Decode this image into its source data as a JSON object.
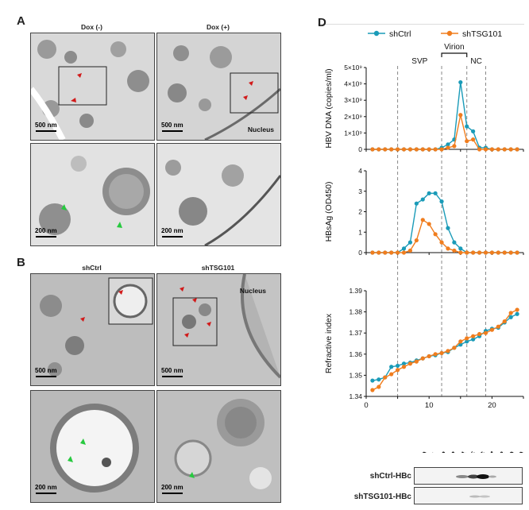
{
  "panels": {
    "A": {
      "letter": "A",
      "col_left": "Dox (-)",
      "col_right": "Dox (+)",
      "scale_top": "500 nm",
      "scale_bottom": "200 nm",
      "nucleus": "Nucleus"
    },
    "B": {
      "letter": "B",
      "col_left": "shCtrl",
      "col_right": "shTSG101",
      "scale_top": "500 nm",
      "scale_bottom": "200 nm",
      "nucleus": "Nucleus"
    },
    "D": {
      "letter": "D",
      "regions": [
        "SVP",
        "Virion",
        "NC"
      ],
      "blots": [
        "shCtrl-HBc",
        "shTSG101-HBc"
      ],
      "fraction_labels": [
        "F10",
        "F11",
        "F12",
        "F13",
        "F14",
        "F15",
        "F16",
        "F17",
        "F18",
        "F19",
        "F20"
      ]
    }
  },
  "colors": {
    "shCtrl": "#1a9bb8",
    "shTSG101": "#f07d1e",
    "arrow_red": "#d11a1a",
    "arrow_green": "#27c93f"
  },
  "chart_data": [
    {
      "type": "line",
      "ylabel": "HBV DNA (copies/ml)",
      "ylim": [
        0,
        5000000000.0
      ],
      "yticks": [
        "0",
        "1×10⁹",
        "2×10⁹",
        "3×10⁹",
        "4×10⁹",
        "5×10⁹"
      ],
      "x": [
        1,
        2,
        3,
        4,
        5,
        6,
        7,
        8,
        9,
        10,
        11,
        12,
        13,
        14,
        15,
        16,
        17,
        18,
        19,
        20,
        21,
        22,
        23,
        24
      ],
      "series": [
        {
          "name": "shCtrl",
          "values": [
            0,
            0,
            0,
            0,
            0,
            0,
            0,
            0,
            0,
            0,
            0,
            100000000.0,
            300000000.0,
            600000000.0,
            4100000000.0,
            1400000000.0,
            1100000000.0,
            100000000.0,
            100000000.0,
            0,
            0,
            0,
            0,
            0
          ]
        },
        {
          "name": "shTSG101",
          "values": [
            0,
            0,
            0,
            0,
            0,
            0,
            0,
            0,
            0,
            0,
            0,
            0,
            100000000.0,
            200000000.0,
            2100000000.0,
            500000000.0,
            600000000.0,
            0,
            0,
            0,
            0,
            0,
            0,
            0
          ]
        }
      ]
    },
    {
      "type": "line",
      "ylabel": "HBsAg (OD450)",
      "ylim": [
        0,
        4
      ],
      "yticks": [
        "0",
        "1",
        "2",
        "3",
        "4"
      ],
      "x": [
        1,
        2,
        3,
        4,
        5,
        6,
        7,
        8,
        9,
        10,
        11,
        12,
        13,
        14,
        15,
        16,
        17,
        18,
        19,
        20,
        21,
        22,
        23,
        24
      ],
      "series": [
        {
          "name": "shCtrl",
          "values": [
            0,
            0,
            0,
            0,
            0,
            0.2,
            0.5,
            2.4,
            2.6,
            2.9,
            2.9,
            2.5,
            1.2,
            0.5,
            0.2,
            0,
            0,
            0,
            0,
            0,
            0,
            0,
            0,
            0
          ]
        },
        {
          "name": "shTSG101",
          "values": [
            0,
            0,
            0,
            0,
            0,
            0,
            0.1,
            0.6,
            1.6,
            1.4,
            0.9,
            0.5,
            0.2,
            0.1,
            0,
            0,
            0,
            0,
            0,
            0,
            0,
            0,
            0,
            0
          ]
        }
      ]
    },
    {
      "type": "line",
      "ylabel": "Refractive index",
      "xlabel": "",
      "ylim": [
        1.34,
        1.39
      ],
      "yticks": [
        "1.34",
        "1.35",
        "1.36",
        "1.37",
        "1.38",
        "1.39"
      ],
      "xticks": [
        "0",
        "10",
        "20"
      ],
      "xlim": [
        0,
        25
      ],
      "x": [
        1,
        2,
        3,
        4,
        5,
        6,
        7,
        8,
        9,
        10,
        11,
        12,
        13,
        14,
        15,
        16,
        17,
        18,
        19,
        20,
        21,
        22,
        23,
        24
      ],
      "series": [
        {
          "name": "shCtrl",
          "values": [
            1.3475,
            1.348,
            1.349,
            1.354,
            1.3545,
            1.3555,
            1.356,
            1.357,
            1.358,
            1.359,
            1.3595,
            1.3605,
            1.361,
            1.363,
            1.3645,
            1.366,
            1.367,
            1.3685,
            1.371,
            1.372,
            1.3725,
            1.375,
            1.3775,
            1.379
          ]
        },
        {
          "name": "shTSG101",
          "values": [
            1.343,
            1.3445,
            1.349,
            1.3505,
            1.3525,
            1.354,
            1.3555,
            1.3565,
            1.358,
            1.359,
            1.36,
            1.3605,
            1.3615,
            1.363,
            1.366,
            1.3675,
            1.3685,
            1.3695,
            1.37,
            1.3715,
            1.373,
            1.3755,
            1.3795,
            1.381
          ]
        }
      ],
      "legend": "top"
    }
  ]
}
